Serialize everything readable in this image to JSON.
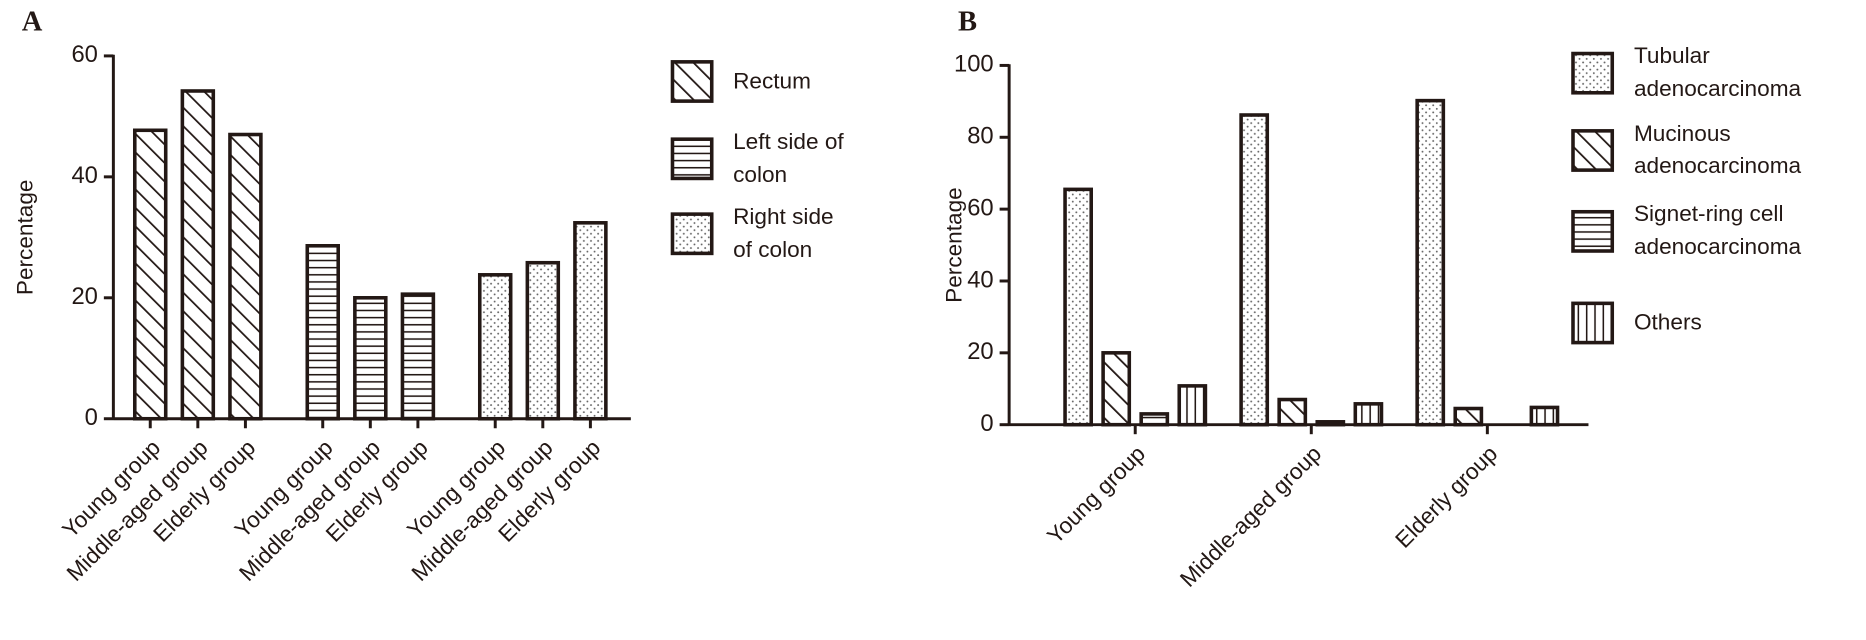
{
  "chart_data": [
    {
      "type": "bar",
      "panel_label": "A",
      "ylabel": "Percentage",
      "grouping": "by-series",
      "ylim": [
        0,
        60
      ],
      "yticks": [
        0,
        20,
        40,
        60
      ],
      "series": [
        {
          "name": "Rectum",
          "pattern": "back-diagonal",
          "color": "#231815",
          "categories": [
            "Young group",
            "Middle-aged group",
            "Elderly group"
          ],
          "values": [
            47.7,
            54.2,
            47.0
          ]
        },
        {
          "name": "Left side of colon",
          "pattern": "horizontal",
          "color": "#231815",
          "categories": [
            "Young group",
            "Middle-aged group",
            "Elderly group"
          ],
          "values": [
            28.6,
            20.0,
            20.6
          ]
        },
        {
          "name": "Right side of colon",
          "pattern": "dots",
          "color": "#231815",
          "categories": [
            "Young group",
            "Middle-aged group",
            "Elderly group"
          ],
          "values": [
            23.8,
            25.8,
            32.4
          ]
        }
      ]
    },
    {
      "type": "bar",
      "panel_label": "B",
      "ylabel": "Percentage",
      "grouping": "by-category",
      "ylim": [
        0,
        100
      ],
      "yticks": [
        0,
        20,
        40,
        60,
        80,
        100
      ],
      "categories": [
        "Young group",
        "Middle-aged group",
        "Elderly group"
      ],
      "series": [
        {
          "name": "Tubular adenocarcinoma",
          "pattern": "dots",
          "color": "#231815",
          "values": [
            65.5,
            86.2,
            90.2
          ]
        },
        {
          "name": "Mucinous adenocarcinoma",
          "pattern": "back-diagonal",
          "color": "#231815",
          "values": [
            20.0,
            7.0,
            4.5
          ]
        },
        {
          "name": "Signet-ring cell adenocarcinoma",
          "pattern": "horizontal",
          "color": "#231815",
          "values": [
            3.0,
            0.8,
            0
          ]
        },
        {
          "name": "Others",
          "pattern": "vertical",
          "color": "#231815",
          "values": [
            10.8,
            5.8,
            4.8
          ]
        }
      ]
    }
  ]
}
